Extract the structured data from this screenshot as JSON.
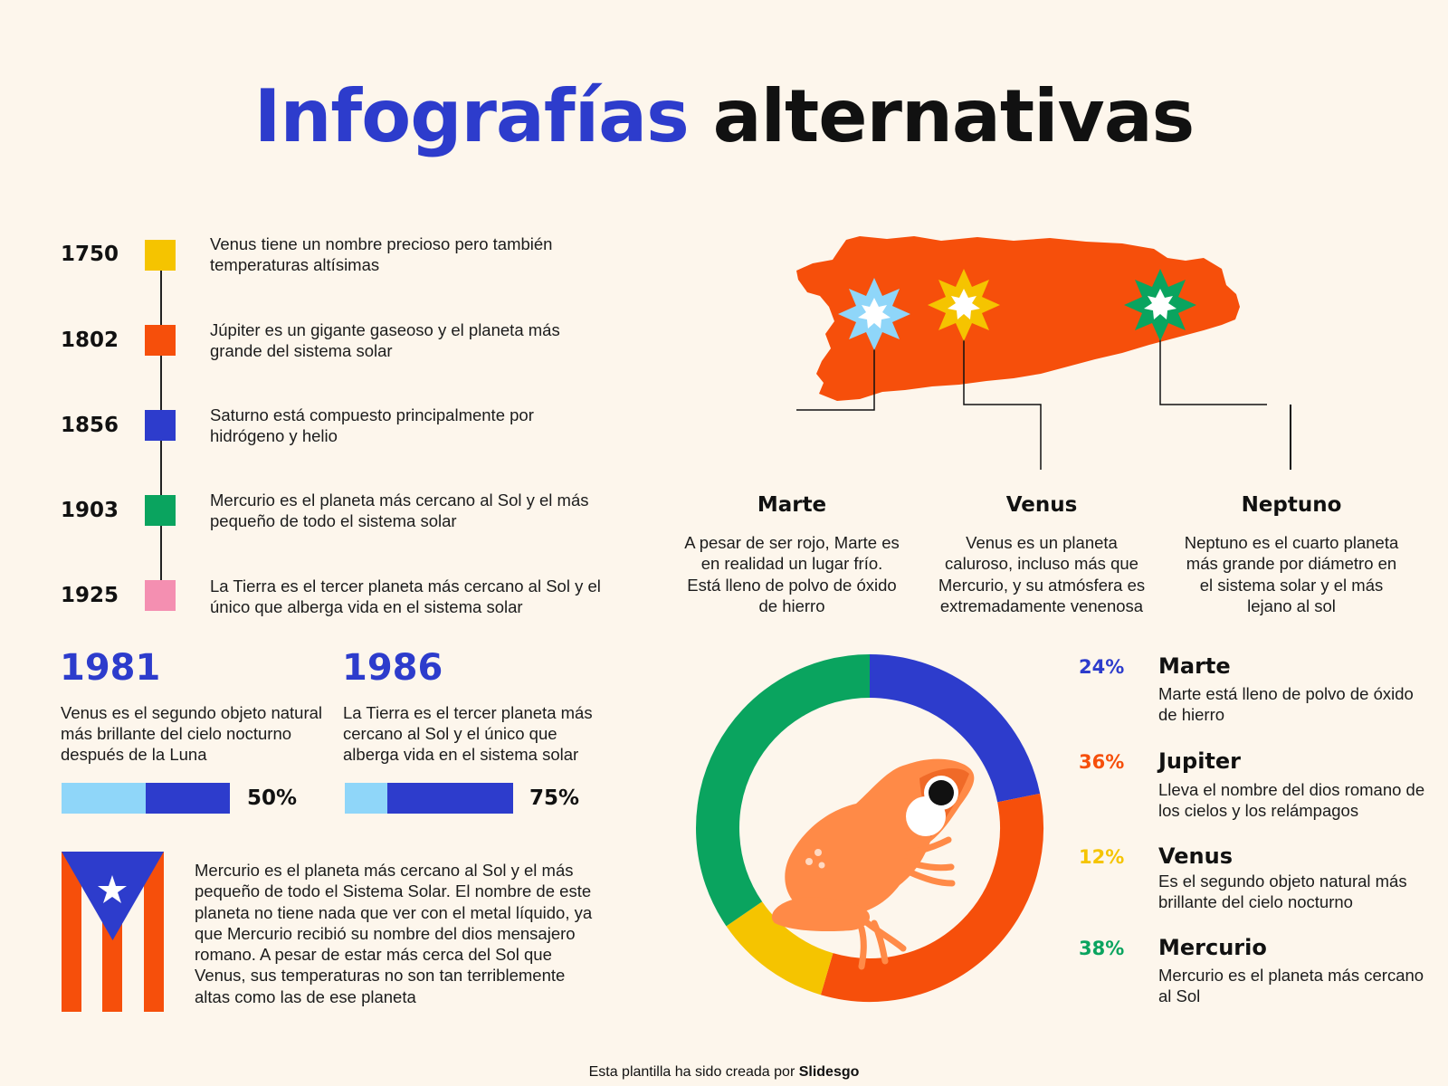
{
  "title": {
    "part1": "Infografías",
    "part2": "alternativas"
  },
  "timeline": [
    {
      "year": "1750",
      "color": "#f5c400",
      "text": "Venus tiene un nombre precioso pero también temperaturas altísimas"
    },
    {
      "year": "1802",
      "color": "#f64f0b",
      "text": "Júpiter es un gigante gaseoso y el planeta más grande del sistema solar"
    },
    {
      "year": "1856",
      "color": "#2d3ccc",
      "text": "Saturno está compuesto principalmente por hidrógeno y helio"
    },
    {
      "year": "1903",
      "color": "#0aa45f",
      "text": "Mercurio es el planeta más cercano al Sol y el más pequeño de todo el sistema solar"
    },
    {
      "year": "1925",
      "color": "#f48fb1",
      "text": "La Tierra es el tercer planeta más cercano al Sol y el único que alberga vida en el sistema solar"
    }
  ],
  "stats": [
    {
      "year": "1981",
      "text": "Venus es  el segundo objeto natural más brillante del cielo nocturno después de la Luna",
      "percent_label": "50%",
      "value": 50
    },
    {
      "year": "1986",
      "text": "La Tierra es el tercer planeta más cercano al Sol y el único que alberga vida en el sistema solar",
      "percent_label": "75%",
      "value": 75
    }
  ],
  "paragraph": "Mercurio es el planeta más cercano al Sol y el más pequeño de todo el Sistema Solar. El nombre de este planeta no tiene nada que ver con el metal líquido, ya que Mercurio recibió su nombre del dios mensajero romano. A pesar de estar más cerca del Sol que Venus, sus temperaturas no son tan terriblemente altas como las de ese planeta",
  "map_points": [
    {
      "name": "Marte",
      "star_color": "#8fd6f9",
      "desc": "A pesar de ser rojo, Marte es en realidad un lugar frío. Está lleno de polvo de óxido de hierro"
    },
    {
      "name": "Venus",
      "star_color": "#f5c400",
      "desc": "Venus es un planeta caluroso, incluso más que Mercurio, y su atmósfera es extremadamente venenosa"
    },
    {
      "name": "Neptuno",
      "star_color": "#0aa45f",
      "desc": "Neptuno es el cuarto planeta más grande por diámetro en el sistema solar y el más lejano al sol"
    }
  ],
  "donut_legend": [
    {
      "percent": "24%",
      "title": "Marte",
      "desc": "Marte está lleno de polvo de óxido de hierro",
      "color": "#2d3ccc"
    },
    {
      "percent": "36%",
      "title": "Jupiter",
      "desc": "Lleva el nombre del dios romano de los cielos y los relámpagos",
      "color": "#f64f0b"
    },
    {
      "percent": "12%",
      "title": "Venus",
      "desc": "Es el segundo objeto natural más brillante del cielo nocturno",
      "color": "#f5c400"
    },
    {
      "percent": "38%",
      "title": "Mercurio",
      "desc": "Mercurio es el planeta más cercano al Sol",
      "color": "#0aa45f"
    }
  ],
  "chart_data": {
    "type": "pie",
    "title": "",
    "categories": [
      "Marte",
      "Jupiter",
      "Venus",
      "Mercurio"
    ],
    "values": [
      24,
      36,
      12,
      38
    ],
    "colors": [
      "#2d3ccc",
      "#f64f0b",
      "#f5c400",
      "#0aa45f"
    ]
  },
  "footer": {
    "prefix": "Esta plantilla ha sido creada por ",
    "brand": "Slidesgo"
  }
}
